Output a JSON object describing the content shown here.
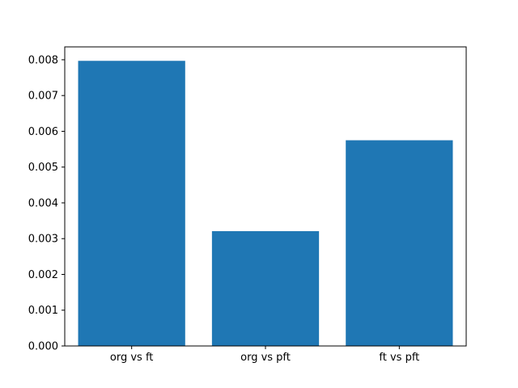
{
  "chart_data": {
    "type": "bar",
    "categories": [
      "org vs ft",
      "org vs pft",
      "ft vs pft"
    ],
    "values": [
      0.00797,
      0.00321,
      0.00575
    ],
    "title": "",
    "xlabel": "",
    "ylabel": "",
    "ylim": [
      0,
      0.00836
    ],
    "yticks": [
      0,
      0.001,
      0.002,
      0.003,
      0.004,
      0.005,
      0.006,
      0.007,
      0.008
    ],
    "ytick_labels": [
      "0.000",
      "0.001",
      "0.002",
      "0.003",
      "0.004",
      "0.005",
      "0.006",
      "0.007",
      "0.008"
    ],
    "grid": false,
    "legend": null,
    "bar_color": "#1f77b4",
    "spine_color": "#000000",
    "background_color": "#ffffff",
    "bar_width_fraction": 0.8
  }
}
